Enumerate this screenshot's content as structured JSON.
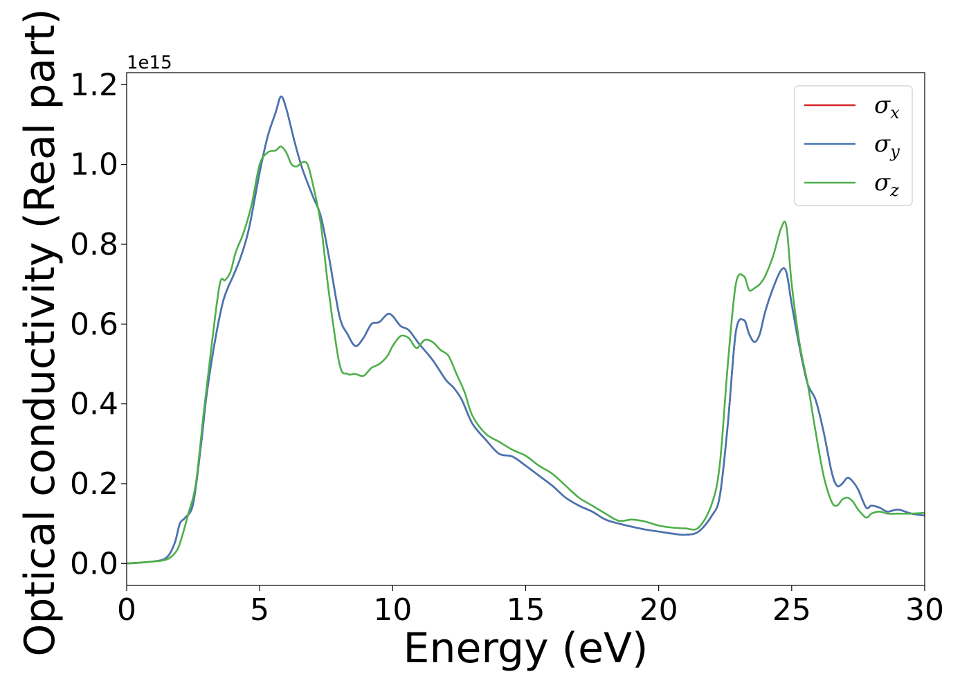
{
  "chart_data": {
    "type": "line",
    "xlabel": "Energy (eV)",
    "ylabel": "Optical conductivity (Real part)",
    "y_offset_text": "1e15",
    "xlim": [
      0,
      30
    ],
    "ylim": [
      -0.055,
      1.23
    ],
    "x_ticks": [
      0,
      5,
      10,
      15,
      20,
      25,
      30
    ],
    "x_tick_labels": [
      "0",
      "5",
      "10",
      "15",
      "20",
      "25",
      "30"
    ],
    "y_ticks": [
      0.0,
      0.2,
      0.4,
      0.6,
      0.8,
      1.0,
      1.2
    ],
    "y_tick_labels": [
      "0.0",
      "0.2",
      "0.4",
      "0.6",
      "0.8",
      "1.0",
      "1.2"
    ],
    "grid": false,
    "legend_position": "top-right",
    "series": [
      {
        "name": "σ",
        "subscript": "x",
        "color": "#d62728",
        "x": [
          0,
          1,
          1.5,
          1.8,
          2.0,
          2.2,
          2.5,
          2.8,
          3.0,
          3.3,
          3.6,
          3.8,
          4.0,
          4.3,
          4.6,
          5.0,
          5.3,
          5.6,
          5.8,
          6.0,
          6.3,
          6.6,
          7.0,
          7.3,
          7.6,
          8.0,
          8.3,
          8.6,
          8.9,
          9.2,
          9.5,
          9.8,
          10.0,
          10.3,
          10.6,
          11.0,
          11.5,
          12.0,
          12.3,
          12.6,
          13.0,
          13.5,
          14.0,
          14.5,
          15.0,
          15.5,
          16.0,
          16.5,
          17.0,
          17.5,
          18.0,
          18.5,
          19.0,
          19.5,
          20.0,
          20.5,
          21.0,
          21.5,
          22.0,
          22.3,
          22.6,
          22.9,
          23.2,
          23.4,
          23.6,
          23.8,
          24.0,
          24.3,
          24.6,
          24.8,
          25.0,
          25.3,
          25.6,
          25.9,
          26.2,
          26.5,
          26.7,
          26.9,
          27.1,
          27.3,
          27.5,
          27.8,
          28.0,
          28.3,
          28.6,
          29.0,
          29.5,
          30.0
        ],
        "y": [
          0,
          0.005,
          0.015,
          0.05,
          0.1,
          0.115,
          0.15,
          0.3,
          0.42,
          0.55,
          0.65,
          0.69,
          0.72,
          0.77,
          0.84,
          0.98,
          1.07,
          1.13,
          1.17,
          1.14,
          1.06,
          0.99,
          0.92,
          0.87,
          0.77,
          0.62,
          0.575,
          0.545,
          0.565,
          0.6,
          0.605,
          0.625,
          0.62,
          0.595,
          0.585,
          0.55,
          0.51,
          0.46,
          0.44,
          0.41,
          0.35,
          0.31,
          0.275,
          0.268,
          0.245,
          0.22,
          0.195,
          0.165,
          0.145,
          0.13,
          0.11,
          0.1,
          0.092,
          0.085,
          0.08,
          0.075,
          0.072,
          0.08,
          0.12,
          0.17,
          0.35,
          0.58,
          0.61,
          0.575,
          0.555,
          0.575,
          0.63,
          0.69,
          0.735,
          0.73,
          0.65,
          0.54,
          0.45,
          0.41,
          0.33,
          0.23,
          0.195,
          0.2,
          0.215,
          0.205,
          0.185,
          0.14,
          0.145,
          0.14,
          0.13,
          0.135,
          0.125,
          0.12
        ]
      },
      {
        "name": "σ",
        "subscript": "y",
        "color": "#4575b4",
        "x": [
          0,
          1,
          1.5,
          1.8,
          2.0,
          2.2,
          2.5,
          2.8,
          3.0,
          3.3,
          3.6,
          3.8,
          4.0,
          4.3,
          4.6,
          5.0,
          5.3,
          5.6,
          5.8,
          6.0,
          6.3,
          6.6,
          7.0,
          7.3,
          7.6,
          8.0,
          8.3,
          8.6,
          8.9,
          9.2,
          9.5,
          9.8,
          10.0,
          10.3,
          10.6,
          11.0,
          11.5,
          12.0,
          12.3,
          12.6,
          13.0,
          13.5,
          14.0,
          14.5,
          15.0,
          15.5,
          16.0,
          16.5,
          17.0,
          17.5,
          18.0,
          18.5,
          19.0,
          19.5,
          20.0,
          20.5,
          21.0,
          21.5,
          22.0,
          22.3,
          22.6,
          22.9,
          23.2,
          23.4,
          23.6,
          23.8,
          24.0,
          24.3,
          24.6,
          24.8,
          25.0,
          25.3,
          25.6,
          25.9,
          26.2,
          26.5,
          26.7,
          26.9,
          27.1,
          27.3,
          27.5,
          27.8,
          28.0,
          28.3,
          28.6,
          29.0,
          29.5,
          30.0
        ],
        "y": [
          0,
          0.005,
          0.015,
          0.05,
          0.1,
          0.115,
          0.15,
          0.3,
          0.42,
          0.55,
          0.65,
          0.69,
          0.72,
          0.77,
          0.84,
          0.98,
          1.07,
          1.13,
          1.17,
          1.14,
          1.06,
          0.99,
          0.92,
          0.87,
          0.77,
          0.62,
          0.575,
          0.545,
          0.565,
          0.6,
          0.605,
          0.625,
          0.62,
          0.595,
          0.585,
          0.55,
          0.51,
          0.46,
          0.44,
          0.41,
          0.35,
          0.31,
          0.275,
          0.268,
          0.245,
          0.22,
          0.195,
          0.165,
          0.145,
          0.13,
          0.11,
          0.1,
          0.092,
          0.085,
          0.08,
          0.075,
          0.072,
          0.08,
          0.12,
          0.17,
          0.35,
          0.58,
          0.61,
          0.575,
          0.555,
          0.575,
          0.63,
          0.69,
          0.735,
          0.73,
          0.65,
          0.54,
          0.45,
          0.41,
          0.33,
          0.23,
          0.195,
          0.2,
          0.215,
          0.205,
          0.185,
          0.14,
          0.145,
          0.14,
          0.13,
          0.135,
          0.125,
          0.12
        ]
      },
      {
        "name": "σ",
        "subscript": "z",
        "color": "#4daf4a",
        "x": [
          0,
          1,
          1.5,
          1.8,
          2.0,
          2.3,
          2.6,
          2.9,
          3.2,
          3.5,
          3.7,
          3.9,
          4.1,
          4.4,
          4.7,
          5.0,
          5.3,
          5.6,
          5.8,
          6.0,
          6.2,
          6.4,
          6.6,
          6.8,
          7.0,
          7.3,
          7.6,
          8.0,
          8.3,
          8.6,
          8.9,
          9.2,
          9.5,
          9.8,
          10.0,
          10.3,
          10.6,
          10.9,
          11.2,
          11.5,
          11.8,
          12.1,
          12.4,
          12.7,
          13.0,
          13.5,
          14.0,
          14.5,
          15.0,
          15.5,
          16.0,
          16.5,
          17.0,
          17.5,
          18.0,
          18.5,
          19.0,
          19.5,
          20.0,
          20.5,
          21.0,
          21.5,
          22.0,
          22.3,
          22.6,
          22.9,
          23.2,
          23.4,
          23.6,
          23.8,
          24.0,
          24.3,
          24.6,
          24.8,
          25.0,
          25.3,
          25.6,
          25.9,
          26.2,
          26.5,
          26.7,
          26.9,
          27.1,
          27.3,
          27.5,
          27.8,
          28.0,
          28.3,
          28.6,
          29.0,
          29.5,
          30.0
        ],
        "y": [
          0,
          0.005,
          0.01,
          0.025,
          0.05,
          0.12,
          0.2,
          0.38,
          0.55,
          0.7,
          0.71,
          0.73,
          0.78,
          0.83,
          0.9,
          1.0,
          1.03,
          1.035,
          1.045,
          1.03,
          1.0,
          0.995,
          1.005,
          1.0,
          0.95,
          0.85,
          0.68,
          0.5,
          0.475,
          0.475,
          0.47,
          0.49,
          0.5,
          0.52,
          0.545,
          0.57,
          0.565,
          0.54,
          0.56,
          0.555,
          0.535,
          0.52,
          0.475,
          0.43,
          0.37,
          0.325,
          0.305,
          0.285,
          0.27,
          0.245,
          0.225,
          0.195,
          0.165,
          0.145,
          0.125,
          0.107,
          0.11,
          0.105,
          0.095,
          0.09,
          0.088,
          0.09,
          0.15,
          0.25,
          0.5,
          0.7,
          0.72,
          0.685,
          0.69,
          0.7,
          0.72,
          0.77,
          0.84,
          0.845,
          0.7,
          0.55,
          0.45,
          0.33,
          0.22,
          0.155,
          0.145,
          0.16,
          0.165,
          0.155,
          0.135,
          0.115,
          0.125,
          0.13,
          0.125,
          0.125,
          0.125,
          0.127
        ]
      }
    ]
  }
}
